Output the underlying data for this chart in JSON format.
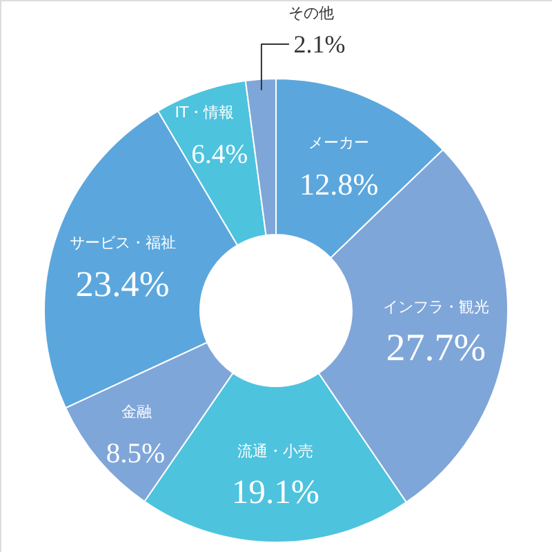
{
  "chart_data": {
    "type": "donut",
    "categories": [
      "メーカー",
      "インフラ・観光",
      "流通・小売",
      "金融",
      "サービス・福祉",
      "IT・情報",
      "その他"
    ],
    "values": [
      12.8,
      27.7,
      19.1,
      8.5,
      23.4,
      6.4,
      2.1
    ],
    "colors": [
      "#5ba7dd",
      "#7fa6d8",
      "#4ec3de",
      "#7fa6d8",
      "#5ba7dd",
      "#4ec3de",
      "#7fa6d8"
    ],
    "value_labels": [
      "12.8%",
      "27.7%",
      "19.1%",
      "8.5%",
      "23.4%",
      "6.4%",
      "2.1%"
    ]
  }
}
